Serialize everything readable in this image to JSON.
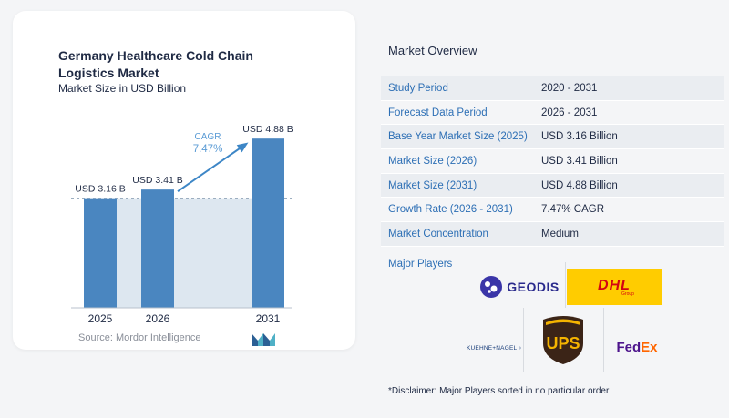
{
  "chart_data": {
    "type": "bar",
    "title": "Germany Healthcare Cold Chain Logistics Market",
    "subtitle": "Market Size in USD Billion",
    "categories": [
      "2025",
      "2026",
      "2031"
    ],
    "values": [
      3.16,
      3.41,
      4.88
    ],
    "data_labels": [
      "USD 3.16 B",
      "USD 3.41 B",
      "USD 4.88 B"
    ],
    "cagr_label": "CAGR",
    "cagr_value": "7.47%",
    "ylim": [
      0,
      5.2
    ],
    "colors": {
      "bar": "#4a86c0",
      "shade": "#dde7f0",
      "arrow": "#3d86c6",
      "cagr_text": "#5a9bd5"
    }
  },
  "source": "Source: Mordor Intelligence",
  "overview": {
    "title": "Market Overview",
    "rows": [
      {
        "key": "Study Period",
        "value": "2020 - 2031"
      },
      {
        "key": "Forecast Data Period",
        "value": "2026 - 2031"
      },
      {
        "key": "Base Year Market Size (2025)",
        "value": "USD 3.16 Billion"
      },
      {
        "key": "Market Size (2026)",
        "value": "USD 3.41 Billion"
      },
      {
        "key": "Market Size (2031)",
        "value": "USD 4.88 Billion"
      },
      {
        "key": "Growth Rate (2026 - 2031)",
        "value": "7.47% CAGR"
      },
      {
        "key": "Market Concentration",
        "value": "Medium"
      }
    ]
  },
  "players": {
    "title": "Major Players",
    "logos": {
      "geodis": "GEODIS",
      "dhl": "DHL",
      "dhl_sub": "Group",
      "ups": "UPS",
      "kn": "KUEHNE+NAGEL",
      "fedex_fe": "Fed",
      "fedex_ex": "Ex"
    }
  },
  "disclaimer": "*Disclaimer: Major Players sorted in no particular order"
}
